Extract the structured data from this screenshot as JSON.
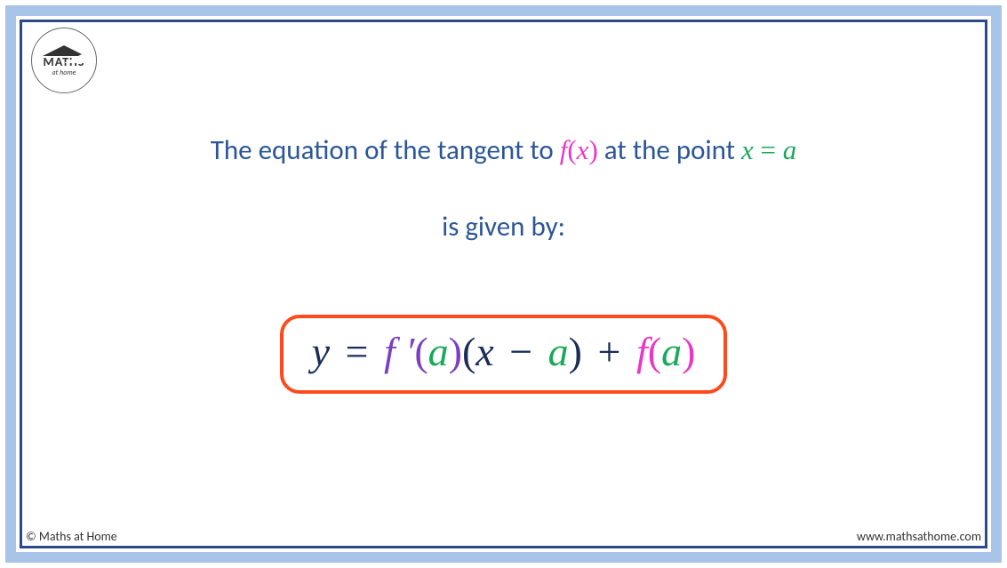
{
  "logo": {
    "main": "MATHS",
    "sub": "at home"
  },
  "text": {
    "line1_a": "The equation of the tangent to ",
    "line1_fx_f": "f",
    "line1_fx_open": "(",
    "line1_fx_x": "x",
    "line1_fx_close": ")",
    "line1_b": " at the point ",
    "line1_xa_x": "x",
    "line1_xa_eq": " = ",
    "line1_xa_a": "a",
    "line2": "is given by:"
  },
  "equation": {
    "y": "y",
    "eq": "=",
    "fprime": "f ′",
    "open1": "(",
    "a1": "a",
    "close1": ")",
    "open2": "(",
    "x": "x",
    "minus": "−",
    "a2": "a",
    "close2": ")",
    "plus": "+",
    "f": "f",
    "open3": "(",
    "a3": "a",
    "close3": ")"
  },
  "footer": {
    "left": "© Maths at Home",
    "right": "www.mathsathome.com"
  },
  "colors": {
    "outer_border": "#a8c4e8",
    "inner_border": "#2a4a8a",
    "body_text": "#2c5697",
    "navy": "#1a2d5a",
    "pink": "#e838c8",
    "green": "#1aa85a",
    "purple": "#7b3fc4",
    "box_border": "#ff4a1c"
  }
}
